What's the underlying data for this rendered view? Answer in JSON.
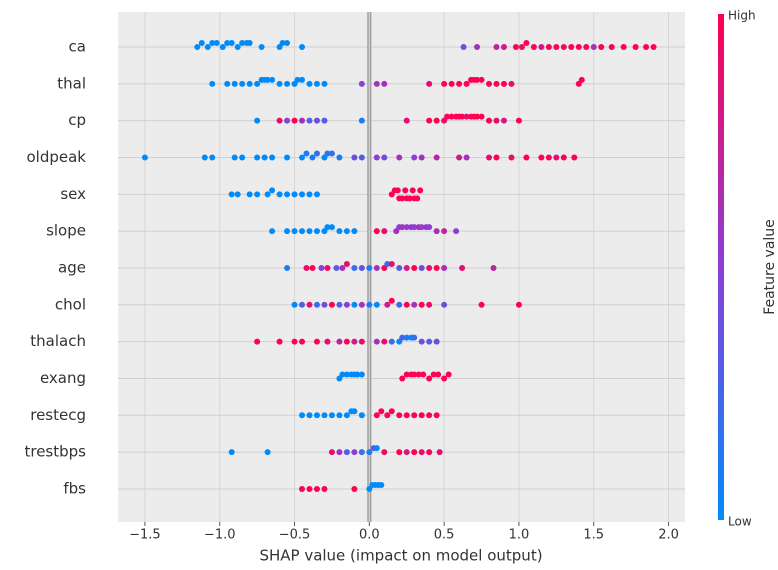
{
  "chart_data": {
    "type": "beeswarm",
    "x_label": "SHAP value (impact on model output)",
    "xlim": [
      -1.68,
      2.11
    ],
    "xticks": [
      {
        "value": -1.5,
        "label": "−1.5"
      },
      {
        "value": -1.0,
        "label": "−1.0"
      },
      {
        "value": -0.5,
        "label": "−0.5"
      },
      {
        "value": 0.0,
        "label": "0.0"
      },
      {
        "value": 0.5,
        "label": "0.5"
      },
      {
        "value": 1.0,
        "label": "1.0"
      },
      {
        "value": 1.5,
        "label": "1.5"
      },
      {
        "value": 2.0,
        "label": "2.0"
      }
    ],
    "grid": true,
    "colorbar": {
      "label": "Feature value",
      "high": "High",
      "low": "Low",
      "colors": [
        "#008bfb",
        "#8b3fd6",
        "#ff0052"
      ]
    },
    "rows": [
      {
        "name": "ca",
        "values": [
          -1.15,
          -1.12,
          -1.08,
          -1.05,
          -1.02,
          -0.98,
          -0.95,
          -0.92,
          -0.88,
          -0.85,
          -0.82,
          -0.8,
          -0.72,
          -0.6,
          -0.58,
          -0.55,
          -0.45,
          0.63,
          0.72,
          0.85,
          0.9,
          0.98,
          1.02,
          1.05,
          1.1,
          1.15,
          1.2,
          1.25,
          1.3,
          1.35,
          1.4,
          1.45,
          1.5,
          1.55,
          1.62,
          1.7,
          1.78,
          1.85,
          1.9
        ],
        "feature_values": [
          0,
          0,
          0,
          0,
          0,
          0,
          0,
          0,
          0,
          0,
          0,
          0,
          0,
          0,
          0,
          0,
          0,
          0.4,
          0.6,
          0.7,
          0.8,
          1,
          0.9,
          1,
          1,
          0.8,
          1,
          1,
          0.9,
          1,
          1,
          1,
          0.6,
          1,
          1,
          1,
          1,
          1,
          1
        ]
      },
      {
        "name": "thal",
        "values": [
          -1.05,
          -0.95,
          -0.9,
          -0.85,
          -0.8,
          -0.75,
          -0.72,
          -0.7,
          -0.68,
          -0.65,
          -0.6,
          -0.55,
          -0.5,
          -0.48,
          -0.45,
          -0.4,
          -0.35,
          -0.3,
          -0.05,
          0.05,
          0.1,
          0.4,
          0.5,
          0.55,
          0.6,
          0.65,
          0.68,
          0.7,
          0.72,
          0.75,
          0.8,
          0.85,
          0.9,
          0.95,
          1.4,
          1.42
        ],
        "feature_values": [
          0,
          0,
          0,
          0,
          0,
          0,
          0,
          0,
          0,
          0,
          0,
          0,
          0,
          0,
          0,
          0,
          0,
          0,
          0.5,
          0.6,
          0.6,
          0.9,
          1,
          1,
          1,
          1,
          1,
          1,
          1,
          1,
          1,
          1,
          1,
          0.9,
          1,
          1
        ]
      },
      {
        "name": "cp",
        "values": [
          -0.75,
          -0.6,
          -0.55,
          -0.5,
          -0.45,
          -0.4,
          -0.35,
          -0.3,
          -0.05,
          0.25,
          0.4,
          0.45,
          0.5,
          0.52,
          0.55,
          0.58,
          0.6,
          0.62,
          0.65,
          0.68,
          0.7,
          0.72,
          0.75,
          0.8,
          0.85,
          0.9,
          1.0
        ],
        "feature_values": [
          0,
          0.9,
          0.5,
          1,
          0.6,
          0.3,
          0.4,
          0.3,
          0.1,
          0.9,
          1,
          1,
          0.9,
          1,
          1,
          1,
          1,
          1,
          0.9,
          1,
          1,
          1,
          1,
          1,
          0.9,
          0.8,
          1
        ]
      },
      {
        "name": "oldpeak",
        "values": [
          -1.5,
          -1.1,
          -1.05,
          -0.9,
          -0.85,
          -0.75,
          -0.7,
          -0.65,
          -0.55,
          -0.45,
          -0.42,
          -0.38,
          -0.35,
          -0.3,
          -0.28,
          -0.25,
          -0.2,
          -0.1,
          -0.05,
          0.05,
          0.1,
          0.2,
          0.3,
          0.35,
          0.45,
          0.6,
          0.65,
          0.8,
          0.85,
          0.95,
          1.05,
          1.15,
          1.2,
          1.25,
          1.3,
          1.37
        ],
        "feature_values": [
          0,
          0,
          0,
          0,
          0,
          0,
          0,
          0,
          0,
          0,
          0.1,
          0.1,
          0.2,
          0,
          0.1,
          0.2,
          0.1,
          0.4,
          0.3,
          0.5,
          0.4,
          0.6,
          0.5,
          0.6,
          0.7,
          0.8,
          0.6,
          0.9,
          1,
          0.9,
          1,
          1,
          1,
          0.9,
          1,
          1
        ]
      },
      {
        "name": "sex",
        "values": [
          -0.92,
          -0.88,
          -0.8,
          -0.75,
          -0.68,
          -0.65,
          -0.6,
          -0.55,
          -0.5,
          -0.45,
          -0.4,
          -0.35,
          0.15,
          0.17,
          0.19,
          0.2,
          0.22,
          0.24,
          0.25,
          0.27,
          0.29,
          0.3,
          0.32,
          0.34
        ],
        "feature_values": [
          0,
          0,
          0,
          0,
          0,
          0,
          0,
          0,
          0,
          0,
          0,
          0,
          1,
          1,
          1,
          1,
          1,
          1,
          1,
          1,
          1,
          1,
          1,
          1
        ]
      },
      {
        "name": "slope",
        "values": [
          -0.65,
          -0.55,
          -0.5,
          -0.45,
          -0.4,
          -0.35,
          -0.3,
          -0.28,
          -0.25,
          -0.2,
          -0.15,
          -0.1,
          0.05,
          0.1,
          0.18,
          0.2,
          0.22,
          0.25,
          0.28,
          0.3,
          0.33,
          0.35,
          0.38,
          0.4,
          0.45,
          0.5,
          0.58
        ],
        "feature_values": [
          0,
          0,
          0,
          0,
          0,
          0,
          0,
          0,
          0,
          0,
          0,
          0,
          1,
          0.9,
          0.6,
          0.5,
          0.6,
          0.5,
          0.6,
          0.5,
          0.6,
          0.5,
          0.6,
          0.5,
          0.6,
          0.7,
          0.5
        ]
      },
      {
        "name": "age",
        "values": [
          -0.55,
          -0.42,
          -0.38,
          -0.32,
          -0.28,
          -0.22,
          -0.18,
          -0.15,
          -0.1,
          -0.05,
          0.0,
          0.05,
          0.1,
          0.12,
          0.15,
          0.2,
          0.25,
          0.3,
          0.35,
          0.4,
          0.45,
          0.5,
          0.62,
          0.83
        ],
        "feature_values": [
          0.1,
          0.9,
          1,
          0.5,
          0.9,
          0.3,
          0.6,
          0.9,
          0.2,
          0.4,
          0.1,
          0.6,
          1,
          0.2,
          0.9,
          0.3,
          0.8,
          1,
          0.4,
          0.9,
          1,
          0.6,
          0.9,
          0.7
        ]
      },
      {
        "name": "chol",
        "values": [
          -0.5,
          -0.45,
          -0.4,
          -0.35,
          -0.3,
          -0.25,
          -0.2,
          -0.15,
          -0.1,
          -0.05,
          0.0,
          0.05,
          0.12,
          0.15,
          0.2,
          0.25,
          0.3,
          0.35,
          0.4,
          0.5,
          0.75,
          1.0
        ],
        "feature_values": [
          0,
          0.3,
          0.9,
          0.2,
          0.4,
          1,
          0.3,
          0.5,
          0,
          0.6,
          0.1,
          0,
          0.8,
          1,
          0.2,
          1,
          0.6,
          1,
          0.9,
          0.4,
          1,
          1
        ]
      },
      {
        "name": "thalach",
        "values": [
          -0.75,
          -0.6,
          -0.5,
          -0.45,
          -0.35,
          -0.28,
          -0.2,
          -0.15,
          -0.1,
          -0.05,
          0.05,
          0.1,
          0.15,
          0.2,
          0.22,
          0.25,
          0.28,
          0.3,
          0.35,
          0.4,
          0.45
        ],
        "feature_values": [
          1,
          1,
          1,
          1,
          1,
          0.9,
          0.7,
          1,
          0.8,
          0.9,
          0.6,
          0.9,
          0.2,
          0,
          0.3,
          0.1,
          0,
          0.2,
          0.4,
          0.3,
          0.4
        ]
      },
      {
        "name": "exang",
        "values": [
          -0.2,
          -0.18,
          -0.15,
          -0.12,
          -0.1,
          -0.08,
          -0.05,
          0.22,
          0.25,
          0.28,
          0.3,
          0.33,
          0.36,
          0.4,
          0.43,
          0.46,
          0.5,
          0.53
        ],
        "feature_values": [
          0,
          0,
          0,
          0,
          0,
          0,
          0,
          1,
          1,
          1,
          1,
          1,
          1,
          1,
          1,
          1,
          1,
          1
        ]
      },
      {
        "name": "restecg",
        "values": [
          -0.45,
          -0.4,
          -0.35,
          -0.3,
          -0.25,
          -0.2,
          -0.15,
          -0.12,
          -0.1,
          -0.05,
          0.05,
          0.08,
          0.12,
          0.15,
          0.2,
          0.25,
          0.3,
          0.35,
          0.4,
          0.45
        ],
        "feature_values": [
          0,
          0,
          0,
          0,
          0,
          0,
          0,
          0,
          0,
          0,
          1,
          1,
          1,
          1,
          1,
          1,
          1,
          1,
          1,
          1
        ]
      },
      {
        "name": "trestbps",
        "values": [
          -0.92,
          -0.68,
          -0.25,
          -0.2,
          -0.15,
          -0.1,
          -0.05,
          0.0,
          0.03,
          0.05,
          0.1,
          0.2,
          0.25,
          0.3,
          0.35,
          0.4,
          0.47
        ],
        "feature_values": [
          0,
          0,
          0.9,
          0.6,
          0.3,
          0.5,
          0.2,
          0.1,
          0.4,
          0,
          0.9,
          1,
          0.8,
          1,
          0.9,
          1,
          0.9
        ]
      },
      {
        "name": "fbs",
        "values": [
          -0.45,
          -0.4,
          -0.35,
          -0.3,
          -0.1,
          0.0,
          0.02,
          0.04,
          0.06,
          0.08
        ],
        "feature_values": [
          1,
          1,
          1,
          1,
          1,
          0,
          0,
          0,
          0,
          0
        ]
      }
    ]
  }
}
